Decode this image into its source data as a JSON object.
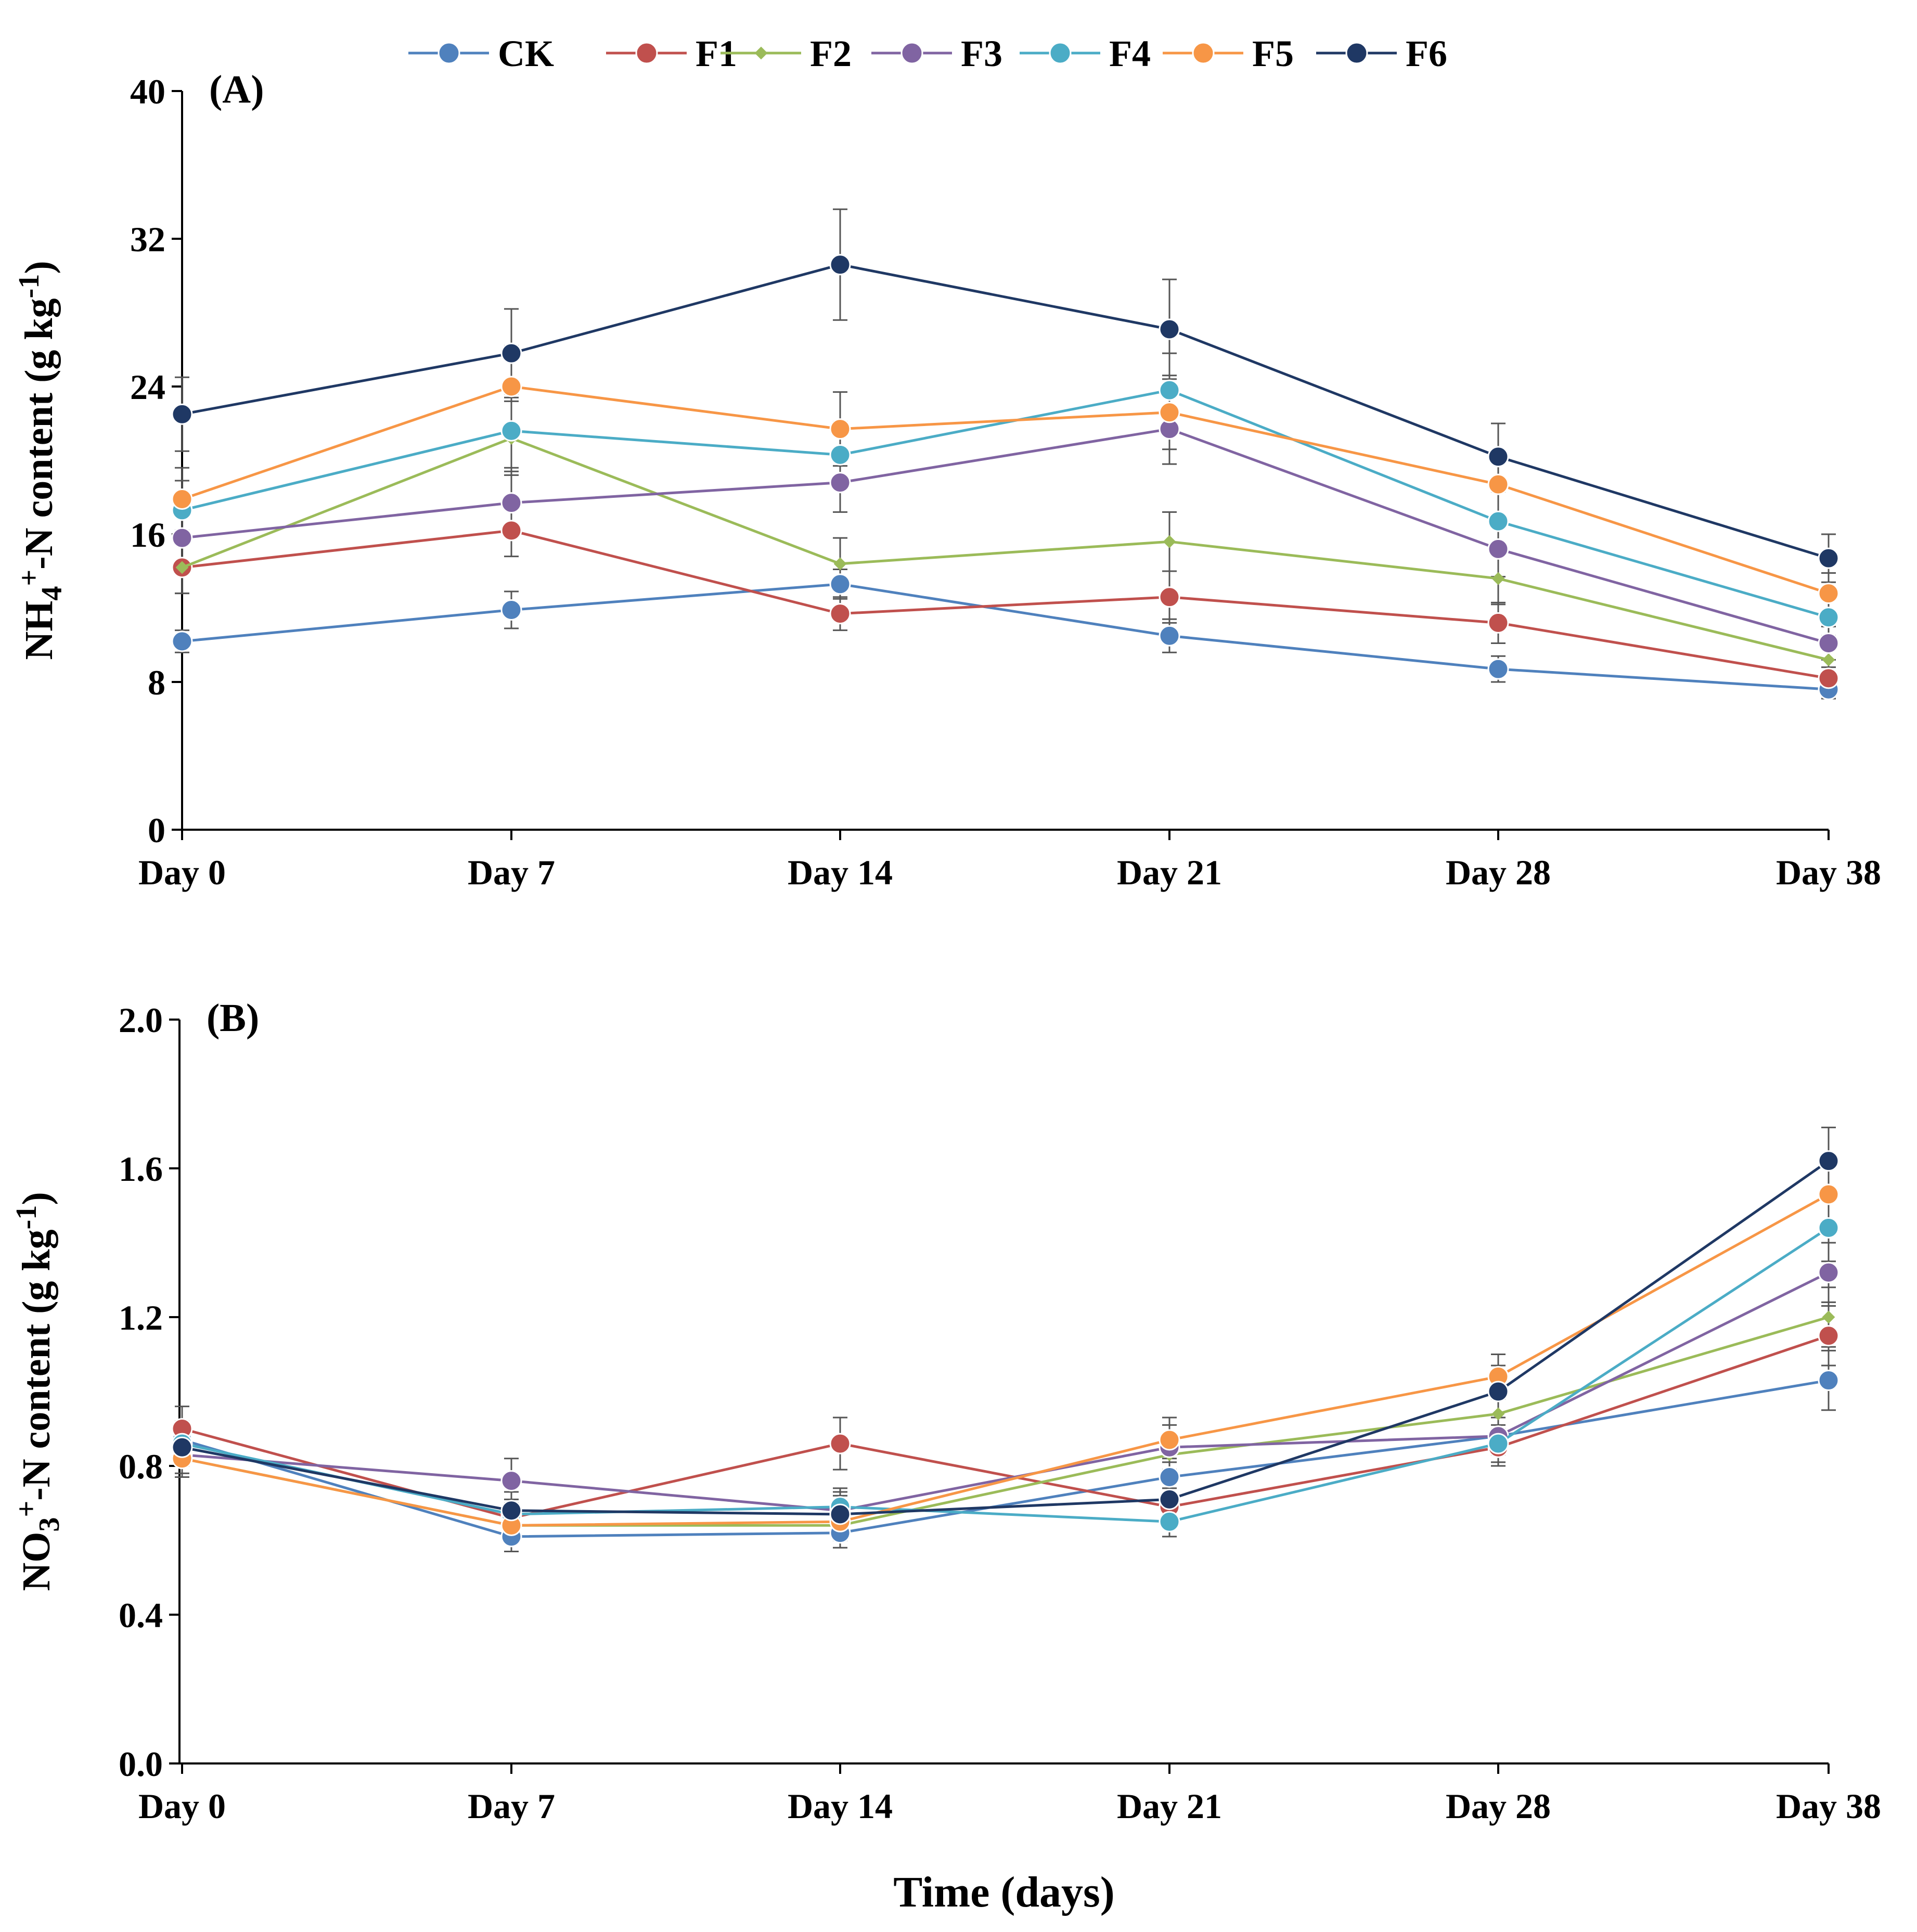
{
  "legend": {
    "entries": [
      {
        "id": "CK",
        "label": "CK",
        "color": "#4F81BD",
        "marker": "circle"
      },
      {
        "id": "F1",
        "label": "F1",
        "color": "#C0504D",
        "marker": "circle"
      },
      {
        "id": "F2",
        "label": "F2",
        "color": "#9BBB59",
        "marker": "diamond-small"
      },
      {
        "id": "F3",
        "label": "F3",
        "color": "#8064A2",
        "marker": "circle"
      },
      {
        "id": "F4",
        "label": "F4",
        "color": "#4BACC6",
        "marker": "circle"
      },
      {
        "id": "F5",
        "label": "F5",
        "color": "#F79646",
        "marker": "circle"
      },
      {
        "id": "F6",
        "label": "F6",
        "color": "#1F3864",
        "marker": "circle"
      }
    ]
  },
  "x_title": "Time (days)",
  "chart_data": [
    {
      "type": "line",
      "panel": "(A)",
      "ylabel_main": "NH",
      "ylabel_sub": "4",
      "ylabel_sup": "+",
      "ylabel_rest": "-N content (g kg",
      "ylabel_unit_sup": "-1",
      "ylabel_end": ")",
      "ylim": [
        0,
        40
      ],
      "yticks": [
        0,
        8,
        16,
        24,
        32,
        40
      ],
      "ytick_labels": [
        "0",
        "8",
        "16",
        "24",
        "32",
        "40"
      ],
      "categories": [
        "Day 0",
        "Day 7",
        "Day 14",
        "Day 21",
        "Day 28",
        "Day 38"
      ],
      "grid": false,
      "series": [
        {
          "name": "CK",
          "values": [
            10.2,
            11.9,
            13.3,
            10.5,
            8.7,
            7.6
          ],
          "errors": [
            0.6,
            1.0,
            0.8,
            0.9,
            0.7,
            0.5
          ]
        },
        {
          "name": "F1",
          "values": [
            14.2,
            16.2,
            11.7,
            12.6,
            11.2,
            8.2
          ],
          "errors": [
            1.4,
            1.4,
            0.9,
            1.4,
            1.1,
            0.6
          ]
        },
        {
          "name": "F2",
          "values": [
            14.2,
            21.2,
            14.4,
            15.6,
            13.6,
            9.2
          ],
          "errors": [
            1.4,
            2.0,
            1.4,
            1.6,
            1.4,
            0.8
          ]
        },
        {
          "name": "F3",
          "values": [
            15.8,
            17.7,
            18.8,
            21.7,
            15.2,
            10.1
          ],
          "errors": [
            1.5,
            1.7,
            1.6,
            1.9,
            1.5,
            0.9
          ]
        },
        {
          "name": "F4",
          "values": [
            17.3,
            21.6,
            20.3,
            23.8,
            16.7,
            11.5
          ],
          "errors": [
            1.6,
            2.0,
            1.8,
            2.0,
            1.6,
            1.0
          ]
        },
        {
          "name": "F5",
          "values": [
            17.9,
            24.0,
            21.7,
            22.6,
            18.7,
            12.8
          ],
          "errors": [
            1.7,
            2.2,
            2.0,
            2.0,
            1.7,
            1.1
          ]
        },
        {
          "name": "F6",
          "values": [
            22.5,
            25.8,
            30.6,
            27.1,
            20.2,
            14.7
          ],
          "errors": [
            2.0,
            2.4,
            3.0,
            2.7,
            1.8,
            1.3
          ]
        }
      ]
    },
    {
      "type": "line",
      "panel": "(B)",
      "ylabel_main": "NO",
      "ylabel_sub": "3",
      "ylabel_sup": "+",
      "ylabel_rest": "-N content (g kg",
      "ylabel_unit_sup": "-1",
      "ylabel_end": ")",
      "ylim": [
        0,
        2.0
      ],
      "yticks": [
        0,
        0.4,
        0.8,
        1.2,
        1.6,
        2.0
      ],
      "ytick_labels": [
        "0.0",
        "0.4",
        "0.8",
        "1.2",
        "1.6",
        "2.0"
      ],
      "categories": [
        "Day 0",
        "Day 7",
        "Day 14",
        "Day 21",
        "Day 28",
        "Day 38"
      ],
      "grid": false,
      "series": [
        {
          "name": "CK",
          "values": [
            0.87,
            0.61,
            0.62,
            0.77,
            0.88,
            1.03
          ],
          "errors": [
            0.05,
            0.04,
            0.04,
            0.05,
            0.05,
            0.08
          ]
        },
        {
          "name": "F1",
          "values": [
            0.9,
            0.66,
            0.86,
            0.69,
            0.85,
            1.15
          ],
          "errors": [
            0.06,
            0.04,
            0.07,
            0.05,
            0.05,
            0.08
          ]
        },
        {
          "name": "F2",
          "values": [
            0.82,
            0.64,
            0.64,
            0.83,
            0.94,
            1.2
          ],
          "errors": [
            0.05,
            0.04,
            0.04,
            0.05,
            0.05,
            0.08
          ]
        },
        {
          "name": "F3",
          "values": [
            0.83,
            0.76,
            0.68,
            0.85,
            0.88,
            1.32
          ],
          "errors": [
            0.05,
            0.06,
            0.05,
            0.06,
            0.05,
            0.08
          ]
        },
        {
          "name": "F4",
          "values": [
            0.86,
            0.67,
            0.69,
            0.65,
            0.86,
            1.44
          ],
          "errors": [
            0.05,
            0.04,
            0.05,
            0.04,
            0.05,
            0.09
          ]
        },
        {
          "name": "F5",
          "values": [
            0.82,
            0.64,
            0.65,
            0.87,
            1.04,
            1.53
          ],
          "errors": [
            0.05,
            0.04,
            0.04,
            0.06,
            0.06,
            0.09
          ]
        },
        {
          "name": "F6",
          "values": [
            0.85,
            0.68,
            0.67,
            0.71,
            1.0,
            1.62
          ],
          "errors": [
            0.05,
            0.05,
            0.05,
            0.05,
            0.07,
            0.09
          ]
        }
      ]
    }
  ]
}
